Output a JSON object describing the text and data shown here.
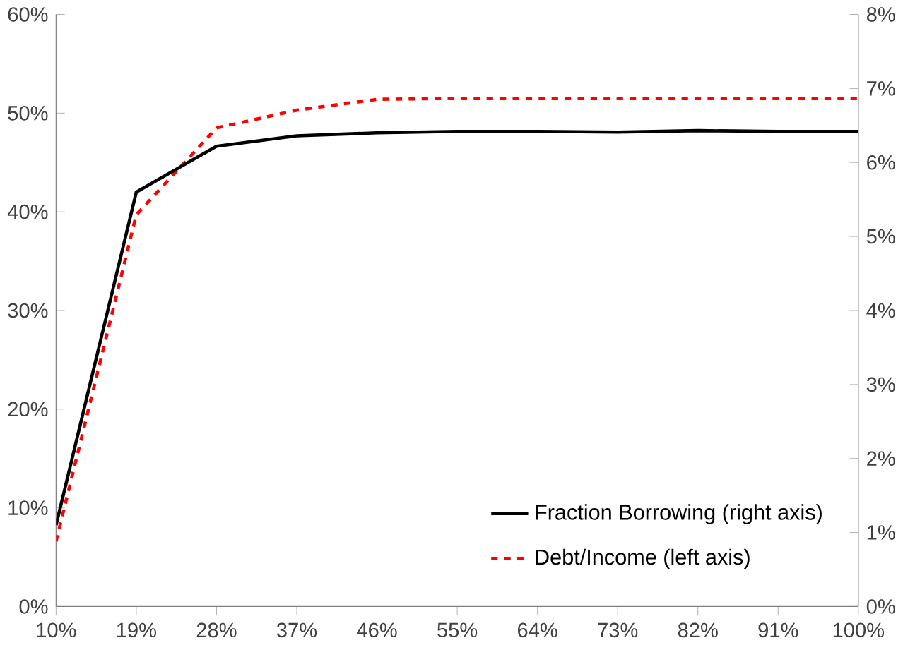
{
  "chart_data": {
    "type": "line",
    "categories": [
      "10%",
      "19%",
      "28%",
      "37%",
      "46%",
      "55%",
      "64%",
      "73%",
      "82%",
      "91%",
      "100%"
    ],
    "series": [
      {
        "name": "Fraction Borrowing (right axis)",
        "color": "#000000",
        "axis": "y2",
        "line_style": "solid",
        "values": [
          1.1,
          5.6,
          6.22,
          6.36,
          6.4,
          6.42,
          6.42,
          6.41,
          6.43,
          6.42,
          6.42
        ]
      },
      {
        "name": "Debt/Income (left axis)",
        "color": "#ff0000",
        "line_style": "dashed",
        "values": [
          6.6,
          39.7,
          48.5,
          50.3,
          51.4,
          51.5,
          51.5,
          51.5,
          51.5,
          51.5,
          51.5
        ]
      }
    ],
    "ylim": [
      0,
      60
    ],
    "yticks": [
      {
        "value": 0,
        "label": "0%"
      },
      {
        "value": 10,
        "label": "10%"
      },
      {
        "value": 20,
        "label": "20%"
      },
      {
        "value": 30,
        "label": "30%"
      },
      {
        "value": 40,
        "label": "40%"
      },
      {
        "value": 50,
        "label": "50%"
      },
      {
        "value": 60,
        "label": "60%"
      }
    ],
    "y2lim": [
      0,
      8
    ],
    "y2ticks": [
      {
        "value": 0,
        "label": "0%"
      },
      {
        "value": 1,
        "label": "1%"
      },
      {
        "value": 2,
        "label": "2%"
      },
      {
        "value": 3,
        "label": "3%"
      },
      {
        "value": 4,
        "label": "4%"
      },
      {
        "value": 5,
        "label": "5%"
      },
      {
        "value": 6,
        "label": "6%"
      },
      {
        "value": 7,
        "label": "7%"
      },
      {
        "value": 8,
        "label": "8%"
      }
    ],
    "grid": false,
    "legend": "bottom right",
    "marker": "none"
  }
}
